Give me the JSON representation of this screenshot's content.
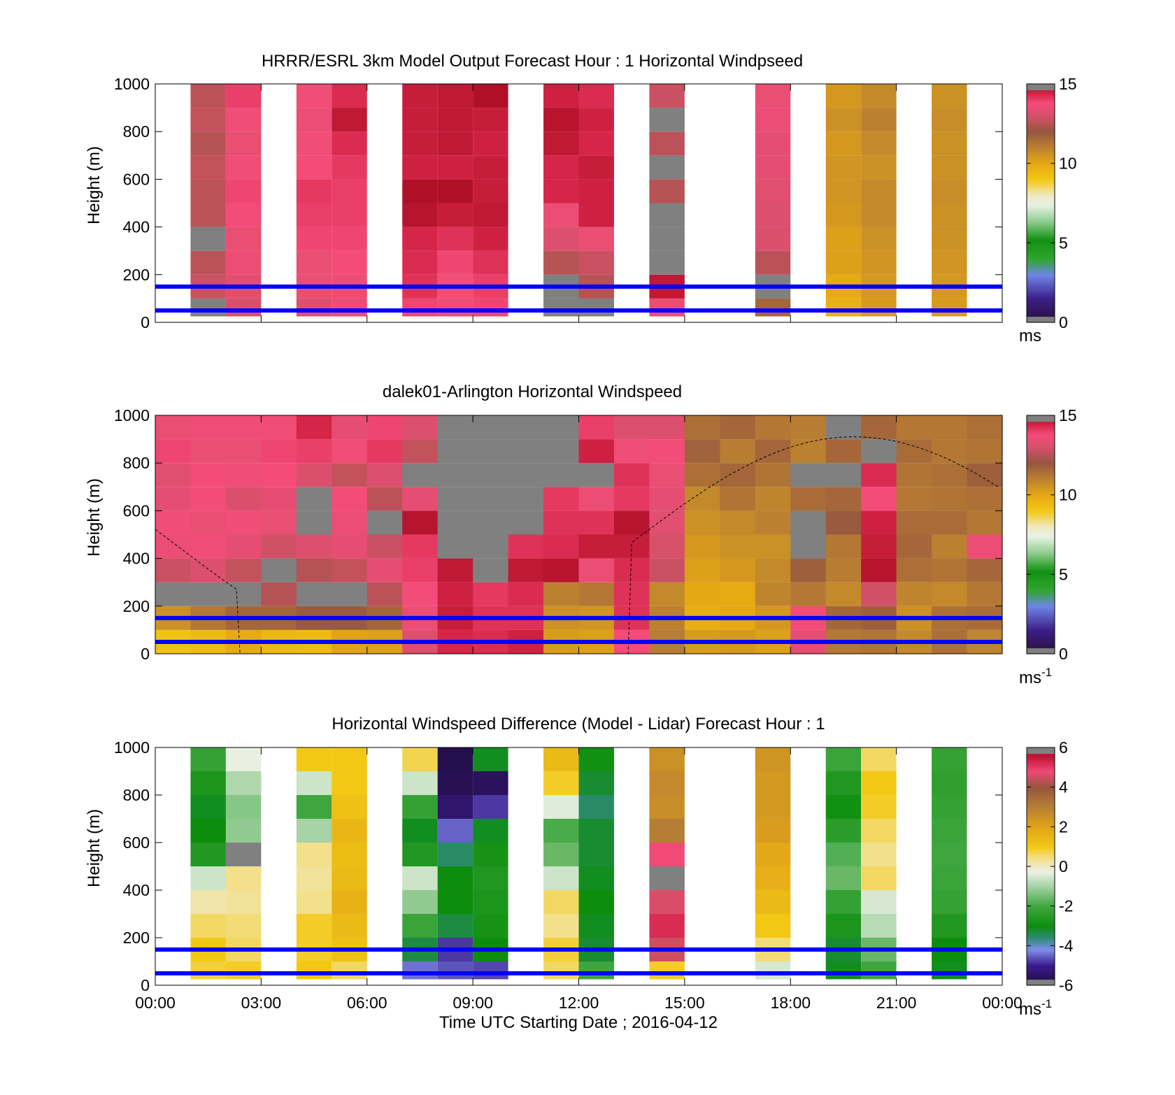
{
  "chart_data": [
    {
      "type": "heatmap",
      "title": "HRRR/ESRL 3km Model Output   Forecast Hour : 1 Horizontal Windpseed",
      "ylabel": "Height (m)",
      "ylim": [
        0,
        1000
      ],
      "yticks": [
        "0",
        "200",
        "400",
        "600",
        "800",
        "1000"
      ],
      "xlim_hours": [
        0,
        24
      ],
      "colorbar": {
        "ticks": [
          "0",
          "5",
          "10",
          "15"
        ],
        "range": [
          0,
          15
        ],
        "unit": "ms",
        "unit_sup": ""
      },
      "reference_lines_m": [
        50,
        150
      ],
      "columns_hour": [
        1.5,
        2.5,
        4.5,
        5.5,
        7.5,
        8.5,
        9.5,
        11.5,
        12.5,
        14.5,
        17.5,
        19.5,
        20.5,
        22.5
      ],
      "column_values_ms": [
        [
          12.2,
          12.8,
          12.6,
          12.4,
          12.6,
          12.6,
          12.7,
          12.5,
          12.7,
          12.6
        ],
        [
          13.0,
          13.3,
          13.6,
          13.5,
          13.8,
          13.9,
          13.7,
          13.5,
          13.7,
          14.0
        ],
        [
          13.2,
          13.5,
          13.5,
          13.9,
          14.0,
          14.1,
          13.8,
          13.7,
          13.6,
          13.7
        ],
        [
          13.6,
          13.6,
          13.8,
          13.9,
          14.0,
          14.0,
          14.1,
          14.3,
          14.7,
          14.3
        ],
        [
          13.9,
          14.2,
          14.3,
          14.4,
          14.8,
          14.9,
          14.5,
          14.6,
          14.6,
          14.6
        ],
        [
          13.6,
          13.7,
          13.9,
          14.2,
          14.6,
          14.9,
          14.5,
          14.7,
          14.7,
          14.7
        ],
        [
          13.9,
          14.0,
          14.2,
          14.5,
          14.7,
          14.6,
          14.6,
          14.5,
          14.6,
          14.9
        ],
        [
          12.0,
          12.2,
          12.5,
          13.2,
          13.6,
          14.4,
          14.4,
          14.7,
          14.8,
          14.5
        ],
        [
          12.4,
          12.5,
          12.8,
          13.5,
          14.5,
          14.5,
          14.6,
          14.4,
          14.5,
          14.3
        ],
        [
          13.5,
          14.7,
          12.2,
          12.4,
          12.3,
          12.5,
          12.1,
          12.6,
          12.3,
          12.8
        ],
        [
          11.6,
          12.3,
          12.6,
          13.1,
          13.2,
          13.3,
          13.4,
          13.4,
          13.6,
          13.5
        ],
        [
          9.7,
          9.9,
          10.2,
          10.2,
          10.4,
          10.5,
          10.5,
          10.4,
          10.6,
          10.4
        ],
        [
          10.3,
          10.4,
          10.5,
          10.6,
          10.8,
          10.8,
          10.6,
          10.8,
          11.0,
          10.8
        ],
        [
          10.3,
          10.4,
          10.5,
          10.6,
          10.6,
          10.7,
          10.6,
          10.6,
          10.7,
          10.6
        ]
      ]
    },
    {
      "type": "heatmap",
      "title": "dalek01-Arlington  Horizontal Windspeed",
      "ylabel": "Height (m)",
      "ylim": [
        0,
        1000
      ],
      "yticks": [
        "0",
        "200",
        "400",
        "600",
        "800",
        "1000"
      ],
      "xlim_hours": [
        0,
        24
      ],
      "colorbar": {
        "ticks": [
          "0",
          "5",
          "10",
          "15"
        ],
        "range": [
          0,
          15
        ],
        "unit": "ms",
        "unit_sup": "-1"
      },
      "reference_lines_m": [
        50,
        150
      ],
      "profile_hours": [
        0,
        1,
        2,
        3,
        4,
        5,
        6,
        7,
        8,
        9,
        10,
        11,
        12,
        13,
        14,
        15,
        16,
        17,
        18,
        19,
        20,
        21,
        22,
        23
      ],
      "profile_values_ms": [
        [
          9.2,
          10.6,
          12.4,
          12.8,
          13.6,
          13.7,
          13.4,
          13.3,
          13.9,
          13.5
        ],
        [
          9.4,
          11.2,
          12.3,
          13.2,
          13.7,
          13.5,
          13.8,
          13.8,
          13.5,
          13.7
        ],
        [
          9.9,
          11.6,
          12.2,
          12.7,
          13.4,
          13.7,
          13.1,
          13.7,
          13.5,
          13.7
        ],
        [
          9.5,
          11.6,
          12.5,
          12.4,
          12.9,
          13.5,
          13.4,
          13.8,
          13.9,
          13.7
        ],
        [
          9.4,
          11.9,
          12.3,
          12.5,
          13.2,
          12.2,
          12.3,
          13.1,
          14.0,
          14.4
        ],
        [
          10.1,
          11.9,
          12.4,
          12.7,
          13.4,
          13.6,
          13.8,
          12.7,
          13.7,
          13.4
        ],
        [
          10.2,
          11.6,
          12.6,
          13.4,
          12.8,
          12.1,
          12.6,
          13.2,
          14.1,
          13.9
        ],
        [
          13.2,
          13.6,
          13.8,
          14.0,
          14.1,
          14.8,
          13.4,
          12.3,
          12.7,
          13.2
        ],
        [
          14.4,
          14.6,
          14.5,
          14.7,
          12.2,
          12.2,
          12.0,
          12.1,
          12.2,
          12.0
        ],
        [
          14.3,
          14.2,
          14.1,
          12.1,
          12.2,
          12.4,
          12.1,
          12.2,
          12.3,
          12.1
        ],
        [
          14.5,
          14.2,
          14.3,
          14.7,
          14.2,
          12.2,
          12.3,
          12.4,
          12.2,
          12.2
        ],
        [
          10.3,
          10.6,
          11.0,
          14.8,
          14.3,
          14.2,
          14.1,
          12.2,
          12.3,
          12.1
        ],
        [
          10.2,
          10.5,
          11.2,
          13.6,
          14.6,
          14.2,
          13.6,
          12.4,
          14.5,
          14.0
        ],
        [
          13.8,
          14.2,
          14.2,
          14.3,
          14.6,
          14.8,
          14.1,
          14.2,
          13.7,
          13.2
        ],
        [
          11.1,
          11.0,
          10.8,
          12.8,
          13.0,
          13.3,
          13.4,
          13.5,
          13.8,
          13.2
        ],
        [
          10.3,
          9.8,
          10.0,
          10.2,
          10.4,
          10.6,
          10.8,
          11.4,
          11.7,
          11.4
        ],
        [
          10.4,
          10.0,
          9.9,
          10.4,
          10.6,
          10.8,
          11.3,
          11.6,
          11.1,
          11.6
        ],
        [
          10.2,
          10.4,
          10.9,
          10.8,
          10.6,
          11.0,
          10.9,
          11.3,
          11.6,
          11.2
        ],
        [
          13.4,
          13.8,
          11.2,
          11.8,
          12.0,
          12.2,
          11.5,
          12.4,
          11.0,
          11.1
        ],
        [
          11.2,
          11.6,
          10.8,
          11.1,
          11.2,
          11.9,
          11.6,
          12.2,
          11.6,
          12.1
        ],
        [
          11.3,
          11.8,
          12.9,
          14.8,
          14.6,
          14.5,
          13.8,
          14.3,
          12.4,
          11.6
        ],
        [
          10.8,
          10.6,
          10.9,
          11.4,
          11.6,
          11.5,
          11.2,
          11.3,
          11.5,
          11.2
        ],
        [
          11.4,
          11.4,
          10.8,
          11.3,
          11.0,
          11.5,
          11.3,
          11.4,
          11.2,
          11.2
        ],
        [
          10.9,
          11.5,
          11.2,
          11.6,
          13.6,
          11.2,
          11.4,
          11.8,
          11.3,
          11.4
        ]
      ]
    },
    {
      "type": "heatmap",
      "title": "Horizontal Windspeed Difference (Model - Lidar) Forecast Hour : 1",
      "ylabel": "Height (m)",
      "xlabel": "Time UTC  Starting Date ; 2016-04-12",
      "ylim": [
        0,
        1000
      ],
      "yticks": [
        "0",
        "200",
        "400",
        "600",
        "800",
        "1000"
      ],
      "xticks": [
        "00:00",
        "03:00",
        "06:00",
        "09:00",
        "12:00",
        "15:00",
        "18:00",
        "21:00",
        "00:00"
      ],
      "xlim_hours": [
        0,
        24
      ],
      "colorbar": {
        "ticks": [
          "-6",
          "-4",
          "-2",
          "0",
          "2",
          "4",
          "6"
        ],
        "range": [
          -6,
          6
        ],
        "unit": "ms",
        "unit_sup": "-1"
      },
      "reference_lines_m": [
        50,
        150
      ],
      "columns_hour": [
        1.5,
        2.5,
        4.5,
        5.5,
        7.5,
        8.5,
        9.5,
        11.5,
        12.5,
        14.5,
        17.5,
        19.5,
        20.5,
        22.5
      ],
      "column_values_ms": [
        [
          0.8,
          1.0,
          0.6,
          0.2,
          -0.6,
          -2.6,
          -3.0,
          -3.1,
          -2.7,
          -2.2
        ],
        [
          0.9,
          0.6,
          0.5,
          0.3,
          0.4,
          0.0,
          -1.2,
          -1.3,
          -0.9,
          -0.3
        ],
        [
          1.0,
          0.9,
          0.9,
          0.4,
          0.3,
          0.4,
          -1.0,
          -2.0,
          -0.6,
          1.0
        ],
        [
          0.6,
          1.2,
          1.4,
          1.6,
          1.4,
          1.3,
          1.5,
          1.2,
          1.0,
          1.0
        ],
        [
          -4.4,
          -3.3,
          -2.1,
          -1.2,
          -0.6,
          -2.6,
          -3.1,
          -2.2,
          -0.6,
          0.7
        ],
        [
          -4.6,
          -4.8,
          -3.3,
          -3.0,
          -3.0,
          -3.5,
          -4.5,
          -5.4,
          -5.7,
          -5.8
        ],
        [
          -4.7,
          -3.0,
          -2.8,
          -2.7,
          -2.6,
          -2.8,
          -3.1,
          -4.8,
          -5.6,
          -3.1
        ],
        [
          0.6,
          0.8,
          0.4,
          0.6,
          -0.6,
          -1.6,
          -1.9,
          -0.4,
          0.9,
          1.4
        ],
        [
          -2.0,
          -3.2,
          -3.1,
          -3.0,
          -3.1,
          -3.2,
          -3.2,
          -3.5,
          -3.2,
          -2.9
        ],
        [
          0.9,
          4.5,
          5.2,
          4.6,
          0.0,
          4.8,
          3.0,
          2.6,
          2.7,
          2.5
        ],
        [
          -0.5,
          0.5,
          1.0,
          1.4,
          1.7,
          1.9,
          2.2,
          2.3,
          2.3,
          2.4
        ],
        [
          -3.1,
          -3.2,
          -2.7,
          -2.2,
          -1.6,
          -1.8,
          -2.4,
          -2.9,
          -2.6,
          -2.1
        ],
        [
          -2.0,
          -1.6,
          -0.8,
          -0.5,
          0.6,
          0.4,
          0.6,
          0.9,
          1.0,
          0.6
        ],
        [
          -3.1,
          -3.0,
          -2.6,
          -2.2,
          -2.1,
          -2.0,
          -2.1,
          -2.2,
          -2.3,
          -2.2
        ]
      ]
    }
  ]
}
